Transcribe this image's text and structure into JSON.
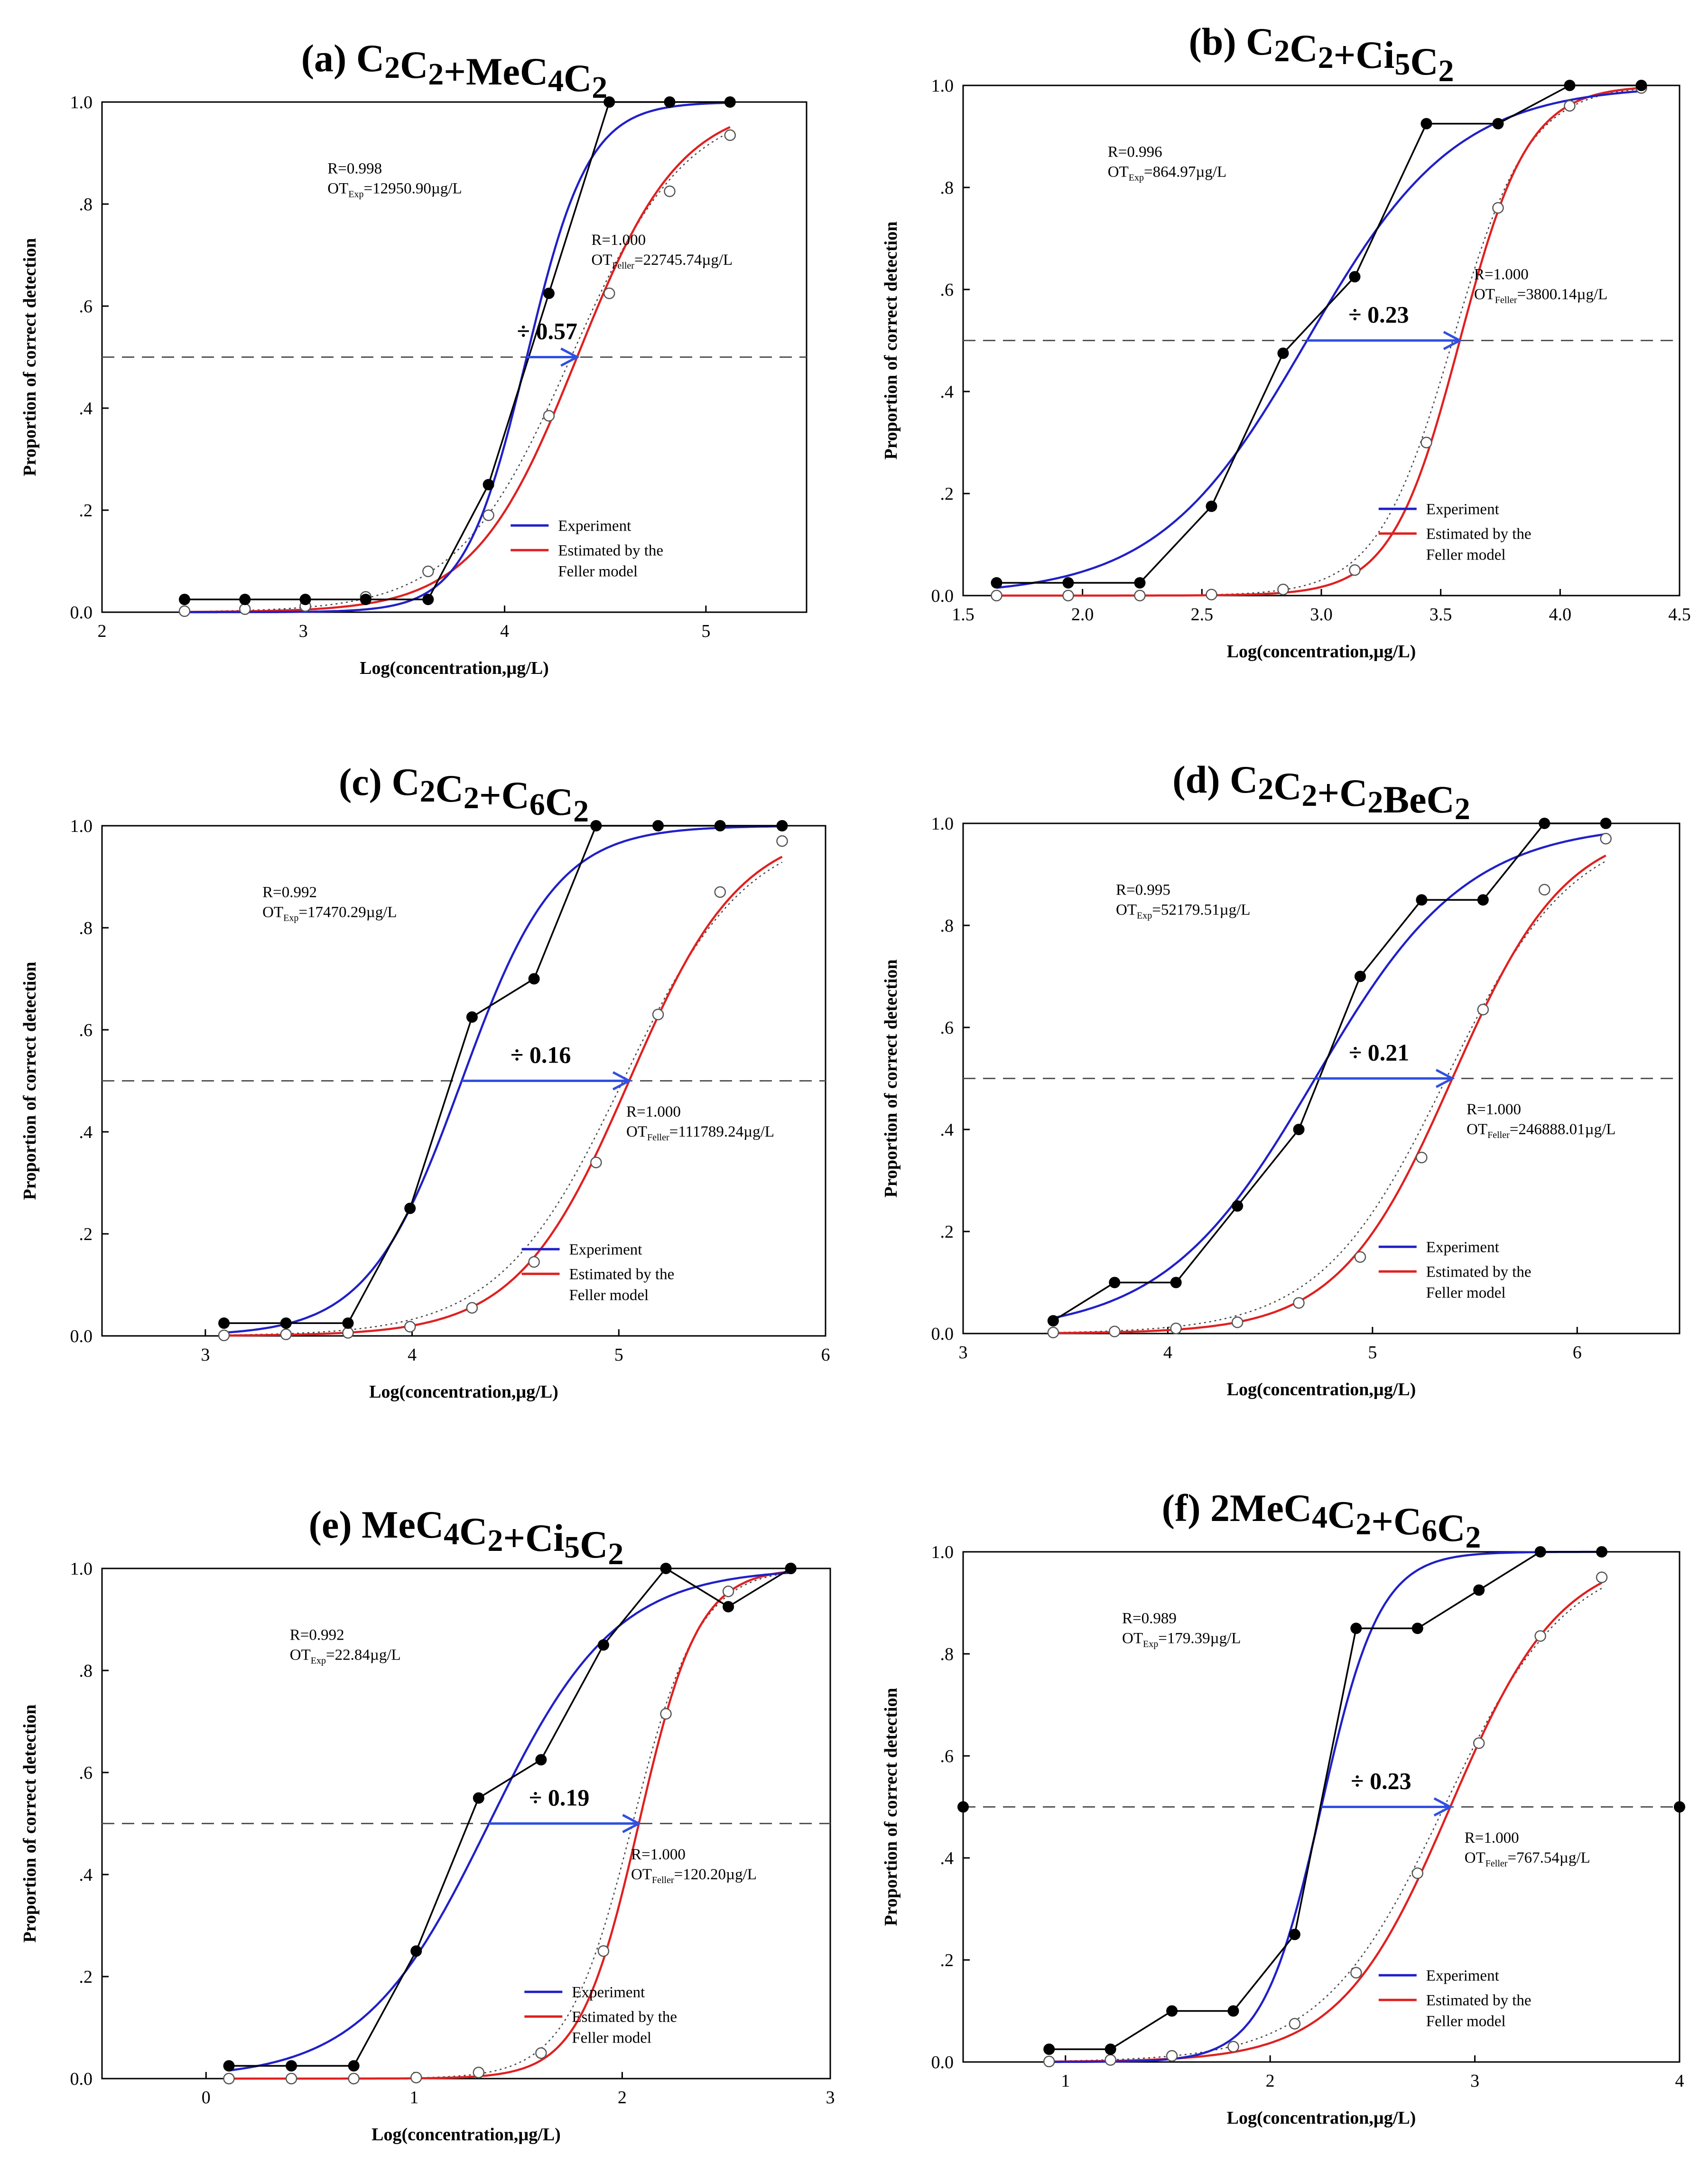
{
  "figure": {
    "y_axis_label": "Proportion of correct detection",
    "x_axis_label": "Log(concentration,µg/L)",
    "legend": [
      "Experiment",
      "Estimated by the Feller model"
    ],
    "colors": {
      "experiment_fit": "#2020c8",
      "feller_fit": "#e02020",
      "points": "#000000",
      "arrow": "#3050e0",
      "threshold": "#555555"
    },
    "threshold": 0.5
  },
  "chart_data": [
    {
      "type": "line",
      "title": "(a) C2C2+MeC4C2",
      "xlabel": "Log(concentration,µg/L)",
      "ylabel": "Proportion of correct detection",
      "xlim": [
        2,
        5.5
      ],
      "ylim": [
        0,
        1
      ],
      "xticks": [
        "2",
        "3",
        "4",
        "5"
      ],
      "yticks": [
        "0.0",
        ".2",
        ".4",
        ".6",
        ".8",
        "1.0"
      ],
      "experiment": {
        "x": [
          2.41,
          2.71,
          3.01,
          3.31,
          3.62,
          3.92,
          4.22,
          4.52,
          4.82,
          5.12
        ],
        "y": [
          0.025,
          0.025,
          0.025,
          0.025,
          0.025,
          0.25,
          0.625,
          1.0,
          1.0,
          1.0
        ]
      },
      "feller": {
        "x": [
          2.41,
          2.71,
          3.01,
          3.31,
          3.62,
          3.92,
          4.22,
          4.52,
          4.82,
          5.12
        ],
        "y": [
          0.002,
          0.006,
          0.012,
          0.03,
          0.08,
          0.19,
          0.385,
          0.625,
          0.825,
          0.935
        ]
      },
      "exp_fit": {
        "x50": 4.11,
        "slope": 6.5
      },
      "feller_fit": {
        "x50": 4.36,
        "slope": 3.9
      },
      "ratio_text": "÷ 0.57",
      "exp_annotation": {
        "r": "R=0.998",
        "ot_pre": "OT",
        "ot_sub": "Exp",
        "ot_val": "=12950.90µg/L"
      },
      "feller_annotation": {
        "r": "R=1.000",
        "ot_pre": "OT",
        "ot_sub": "Feller",
        "ot_val": "=22745.74µg/L"
      }
    },
    {
      "type": "line",
      "title": "(b) C2C2+Ci5C2",
      "xlabel": "Log(concentration,µg/L)",
      "ylabel": "Proportion of correct detection",
      "xlim": [
        1.5,
        4.5
      ],
      "ylim": [
        0,
        1
      ],
      "xticks": [
        "1.5",
        "2.0",
        "2.5",
        "3.0",
        "3.5",
        "4.0",
        "4.5"
      ],
      "yticks": [
        "0.0",
        ".2",
        ".4",
        ".6",
        ".8",
        "1.0"
      ],
      "experiment": {
        "x": [
          1.64,
          1.94,
          2.24,
          2.54,
          2.84,
          3.14,
          3.44,
          3.74,
          4.04,
          4.34
        ],
        "y": [
          0.025,
          0.025,
          0.025,
          0.175,
          0.475,
          0.625,
          0.925,
          0.925,
          1.0,
          1.0
        ]
      },
      "feller": {
        "x": [
          1.64,
          1.94,
          2.24,
          2.54,
          2.84,
          3.14,
          3.44,
          3.74,
          4.04,
          4.34
        ],
        "y": [
          0.0,
          0.0,
          0.0,
          0.002,
          0.012,
          0.05,
          0.3,
          0.76,
          0.96,
          0.995
        ]
      },
      "exp_fit": {
        "x50": 2.94,
        "slope": 3.2
      },
      "feller_fit": {
        "x50": 3.58,
        "slope": 7.0
      },
      "ratio_text": "÷ 0.23",
      "exp_annotation": {
        "r": "R=0.996",
        "ot_pre": "OT",
        "ot_sub": "Exp",
        "ot_val": "=864.97µg/L"
      },
      "feller_annotation": {
        "r": "R=1.000",
        "ot_pre": "OT",
        "ot_sub": "Feller",
        "ot_val": "=3800.14µg/L"
      }
    },
    {
      "type": "line",
      "title": "(c) C2C2+C6C2",
      "xlabel": "Log(concentration,µg/L)",
      "ylabel": "Proportion of correct detection",
      "xlim": [
        2.5,
        6
      ],
      "ylim": [
        0,
        1
      ],
      "xticks": [
        "3",
        "4",
        "5",
        "6"
      ],
      "yticks": [
        "0.0",
        ".2",
        ".4",
        ".6",
        ".8",
        "1.0"
      ],
      "experiment": {
        "x": [
          3.09,
          3.39,
          3.69,
          3.99,
          4.29,
          4.59,
          4.89,
          5.19,
          5.49,
          5.79
        ],
        "y": [
          0.025,
          0.025,
          0.025,
          0.25,
          0.625,
          0.7,
          1.0,
          1.0,
          1.0,
          1.0
        ]
      },
      "feller": {
        "x": [
          3.09,
          3.39,
          3.69,
          3.99,
          4.29,
          4.59,
          4.89,
          5.19,
          5.49,
          5.79
        ],
        "y": [
          0.001,
          0.003,
          0.006,
          0.018,
          0.055,
          0.145,
          0.34,
          0.63,
          0.87,
          0.97
        ]
      },
      "exp_fit": {
        "x50": 4.24,
        "slope": 4.4
      },
      "feller_fit": {
        "x50": 5.05,
        "slope": 3.7
      },
      "ratio_text": "÷ 0.16",
      "exp_annotation": {
        "r": "R=0.992",
        "ot_pre": "OT",
        "ot_sub": "Exp",
        "ot_val": "=17470.29µg/L"
      },
      "feller_annotation": {
        "r": "R=1.000",
        "ot_pre": "OT",
        "ot_sub": "Feller",
        "ot_val": "=111789.24µg/L"
      }
    },
    {
      "type": "line",
      "title": "(d) C2C2+C2BeC2",
      "xlabel": "Log(concentration,µg/L)",
      "ylabel": "Proportion of correct detection",
      "xlim": [
        3,
        6.5
      ],
      "ylim": [
        0,
        1
      ],
      "xticks": [
        "3",
        "4",
        "5",
        "6"
      ],
      "yticks": [
        "0.0",
        ".2",
        ".4",
        ".6",
        ".8",
        "1.0"
      ],
      "experiment": {
        "x": [
          3.44,
          3.74,
          4.04,
          4.34,
          4.64,
          4.94,
          5.24,
          5.54,
          5.84,
          6.14
        ],
        "y": [
          0.025,
          0.1,
          0.1,
          0.25,
          0.4,
          0.7,
          0.85,
          0.85,
          1.0,
          1.0
        ]
      },
      "feller": {
        "x": [
          3.44,
          3.74,
          4.04,
          4.34,
          4.64,
          4.94,
          5.24,
          5.54,
          5.84,
          6.14
        ],
        "y": [
          0.002,
          0.004,
          0.01,
          0.022,
          0.06,
          0.15,
          0.345,
          0.635,
          0.87,
          0.97
        ]
      },
      "exp_fit": {
        "x50": 4.72,
        "slope": 2.7
      },
      "feller_fit": {
        "x50": 5.39,
        "slope": 3.6
      },
      "ratio_text": "÷ 0.21",
      "exp_annotation": {
        "r": "R=0.995",
        "ot_pre": "OT",
        "ot_sub": "Exp",
        "ot_val": "=52179.51µg/L"
      },
      "feller_annotation": {
        "r": "R=1.000",
        "ot_pre": "OT",
        "ot_sub": "Feller",
        "ot_val": "=246888.01µg/L"
      }
    },
    {
      "type": "line",
      "title": "(e) MeC4C2+Ci5C2",
      "xlabel": "Log(concentration,µg/L)",
      "ylabel": "Proportion of correct detection",
      "xlim": [
        -0.5,
        3
      ],
      "ylim": [
        0,
        1
      ],
      "xticks": [
        "0",
        "1",
        "2",
        "3"
      ],
      "yticks": [
        "0.0",
        ".2",
        ".4",
        ".6",
        ".8",
        "1.0"
      ],
      "experiment": {
        "x": [
          0.11,
          0.41,
          0.71,
          1.01,
          1.31,
          1.61,
          1.91,
          2.21,
          2.51,
          2.81
        ],
        "y": [
          0.025,
          0.025,
          0.025,
          0.25,
          0.55,
          0.625,
          0.85,
          1.0,
          0.925,
          1.0
        ]
      },
      "feller": {
        "x": [
          0.11,
          0.41,
          0.71,
          1.01,
          1.31,
          1.61,
          1.91,
          2.21,
          2.51,
          2.81
        ],
        "y": [
          0.0,
          0.0,
          0.0,
          0.002,
          0.012,
          0.05,
          0.25,
          0.715,
          0.955,
          1.0
        ]
      },
      "exp_fit": {
        "x50": 1.36,
        "slope": 3.3
      },
      "feller_fit": {
        "x50": 2.08,
        "slope": 7.0
      },
      "ratio_text": "÷ 0.19",
      "exp_annotation": {
        "r": "R=0.992",
        "ot_pre": "OT",
        "ot_sub": "Exp",
        "ot_val": "=22.84µg/L"
      },
      "feller_annotation": {
        "r": "R=1.000",
        "ot_pre": "OT",
        "ot_sub": "Feller",
        "ot_val": "=120.20µg/L"
      }
    },
    {
      "type": "line",
      "title": "(f) 2MeC4C2+C6C2",
      "xlabel": "Log(concentration,µg/L)",
      "ylabel": "Proportion of correct detection",
      "xlim": [
        0.5,
        4
      ],
      "ylim": [
        0,
        1
      ],
      "xticks": [
        "1",
        "2",
        "3",
        "4"
      ],
      "yticks": [
        "0.0",
        ".2",
        ".4",
        ".6",
        ".8",
        "1.0"
      ],
      "experiment": {
        "x": [
          0.92,
          1.22,
          1.52,
          1.82,
          2.12,
          2.42,
          2.72,
          3.02,
          3.32,
          3.62
        ],
        "y": [
          0.025,
          0.025,
          0.1,
          0.1,
          0.25,
          0.85,
          0.85,
          0.925,
          1.0,
          1.0
        ]
      },
      "feller": {
        "x": [
          0.92,
          1.22,
          1.52,
          1.82,
          2.12,
          2.42,
          2.72,
          3.02,
          3.32,
          3.62
        ],
        "y": [
          0.001,
          0.004,
          0.012,
          0.03,
          0.075,
          0.175,
          0.37,
          0.625,
          0.835,
          0.95
        ]
      },
      "exp_fit": {
        "x50": 2.25,
        "slope": 7.0
      },
      "feller_fit": {
        "x50": 2.88,
        "slope": 3.7
      },
      "extra_points": {
        "x": [
          0.5,
          4.0
        ],
        "y": [
          0.5,
          0.5
        ]
      },
      "ratio_text": "÷ 0.23",
      "exp_annotation": {
        "r": "R=0.989",
        "ot_pre": "OT",
        "ot_sub": "Exp",
        "ot_val": "=179.39µg/L"
      },
      "feller_annotation": {
        "r": "R=1.000",
        "ot_pre": "OT",
        "ot_sub": "Feller",
        "ot_val": "=767.54µg/L"
      }
    }
  ]
}
